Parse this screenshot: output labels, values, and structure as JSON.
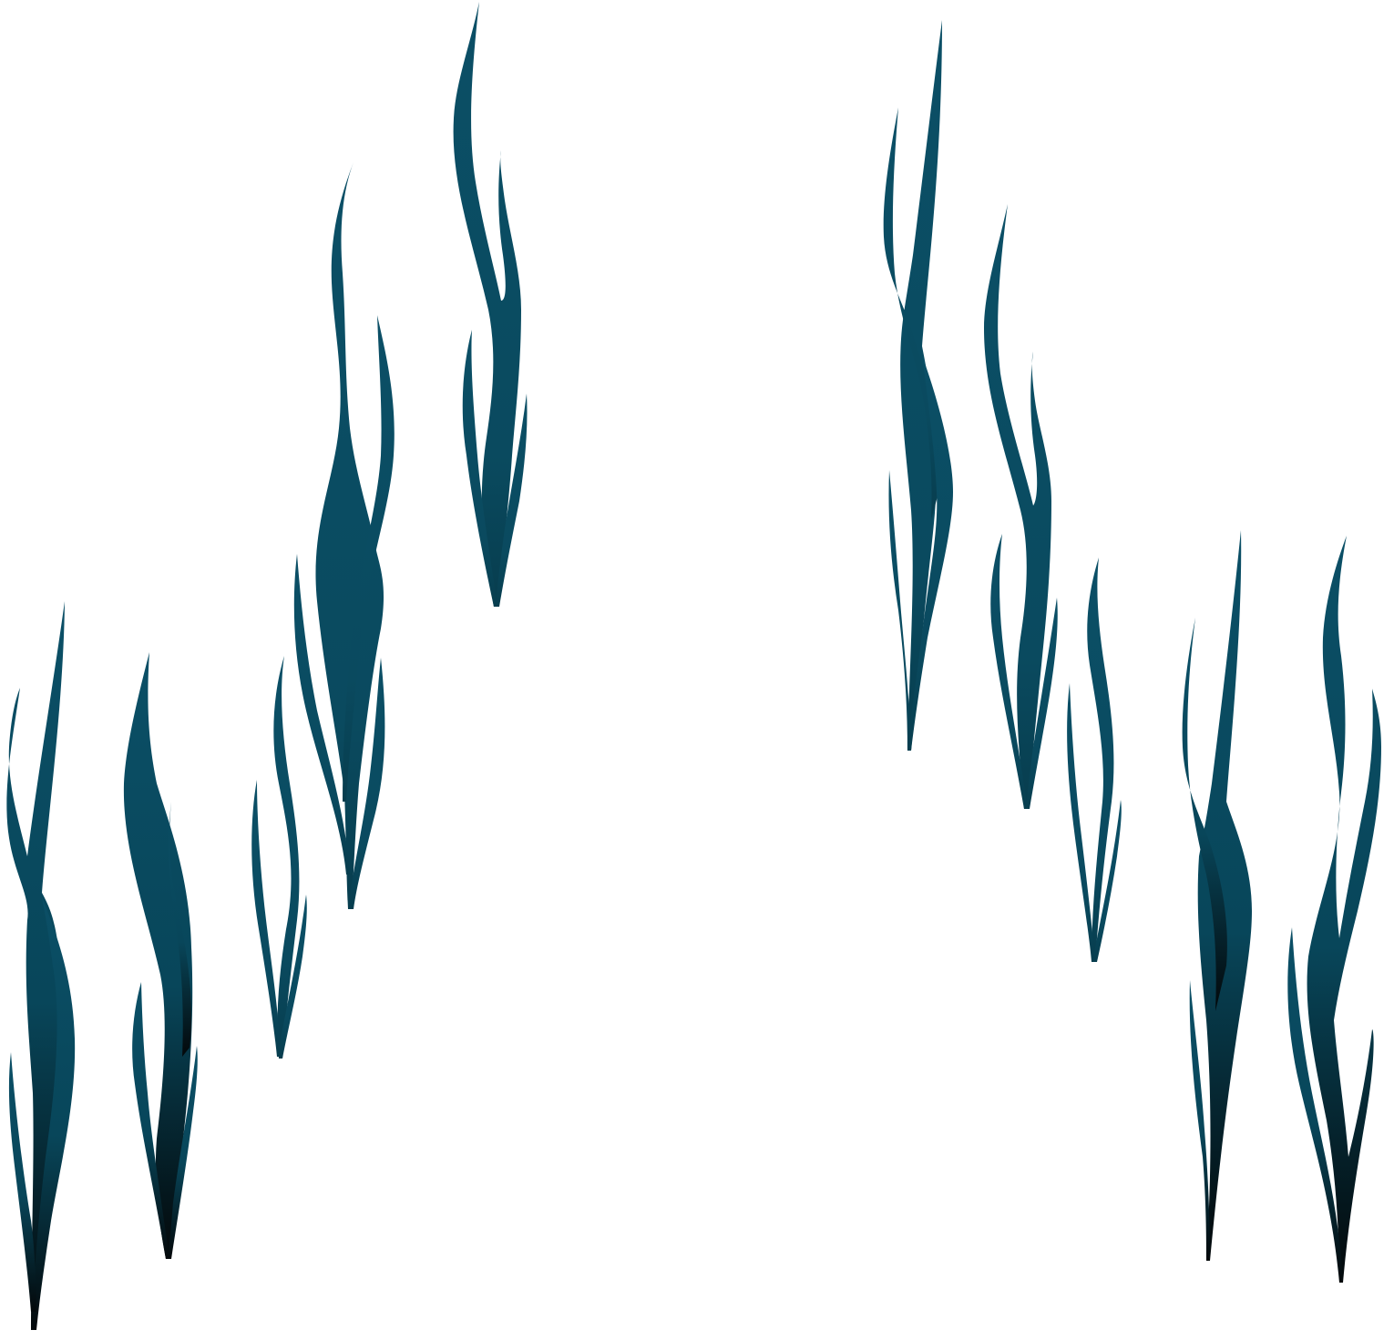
{
  "scene": {
    "background_color": "#ffffff",
    "colors": {
      "teal": "#0b4f66",
      "teal_mid": "#08465a",
      "dark": "#03080a"
    },
    "groups": [
      {
        "name": "seaweed-cluster-left-bottom",
        "blades": 4
      },
      {
        "name": "seaweed-cluster-left-middle",
        "blades": 4
      },
      {
        "name": "seaweed-cluster-left-top",
        "blades": 3
      },
      {
        "name": "seaweed-cluster-right-top",
        "blades": 3
      },
      {
        "name": "seaweed-cluster-right-middle",
        "blades": 5
      },
      {
        "name": "seaweed-cluster-right-bottom",
        "blades": 4
      }
    ]
  }
}
